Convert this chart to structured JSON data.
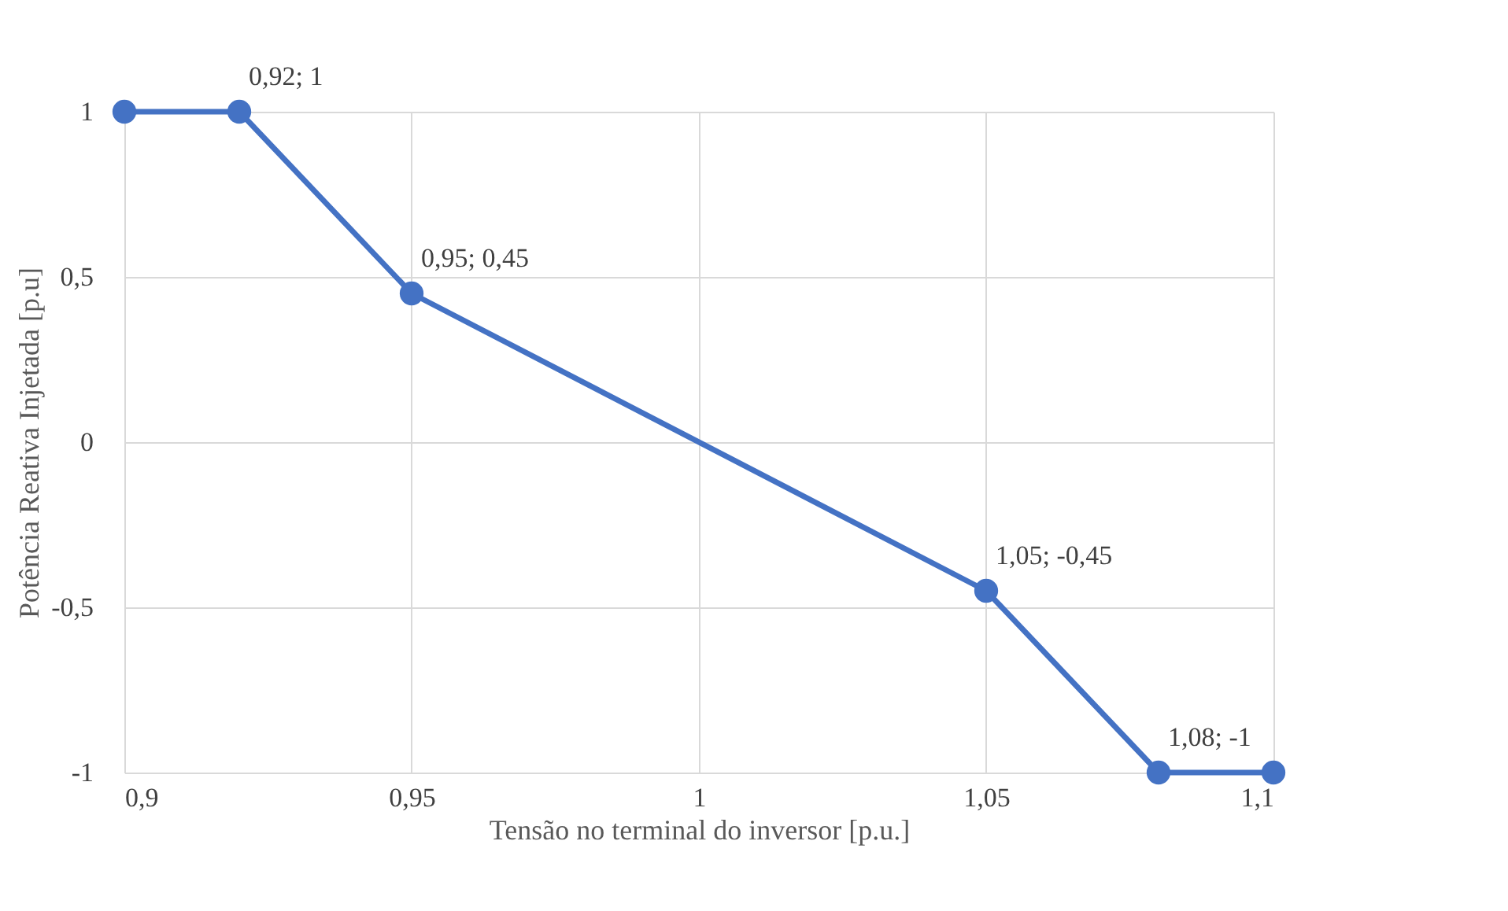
{
  "chart_data": {
    "type": "line",
    "xlabel": "Tensão no terminal do inversor [p.u.]",
    "ylabel": "Potência Reativa Injetada [p.u]",
    "x": [
      0.9,
      0.92,
      0.95,
      1.05,
      1.08,
      1.1
    ],
    "series": [
      {
        "color": "#4472c4",
        "values": [
          1,
          1,
          0.45,
          -0.45,
          -1,
          -1
        ]
      }
    ],
    "xlim": [
      0.9,
      1.1
    ],
    "ylim": [
      -1,
      1
    ],
    "xticks": [
      {
        "value": 0.9,
        "label": "0,9"
      },
      {
        "value": 0.95,
        "label": "0,95"
      },
      {
        "value": 1,
        "label": "1"
      },
      {
        "value": 1.05,
        "label": "1,05"
      },
      {
        "value": 1.1,
        "label": "1,1"
      }
    ],
    "yticks": [
      {
        "value": -1,
        "label": "-1"
      },
      {
        "value": -0.5,
        "label": "-0,5"
      },
      {
        "value": 0,
        "label": "0"
      },
      {
        "value": 0.5,
        "label": "0,5"
      },
      {
        "value": 1,
        "label": "1"
      }
    ],
    "annotations": [
      {
        "text": "0,92; 1",
        "x": 0.92,
        "y": 1
      },
      {
        "text": "0,95; 0,45",
        "x": 0.95,
        "y": 0.45
      },
      {
        "text": "1,05; -0,45",
        "x": 1.05,
        "y": -0.45
      },
      {
        "text": "1,08; -1",
        "x": 1.08,
        "y": -1
      }
    ],
    "grid": true,
    "marker": "circle",
    "line_style": "solid"
  }
}
